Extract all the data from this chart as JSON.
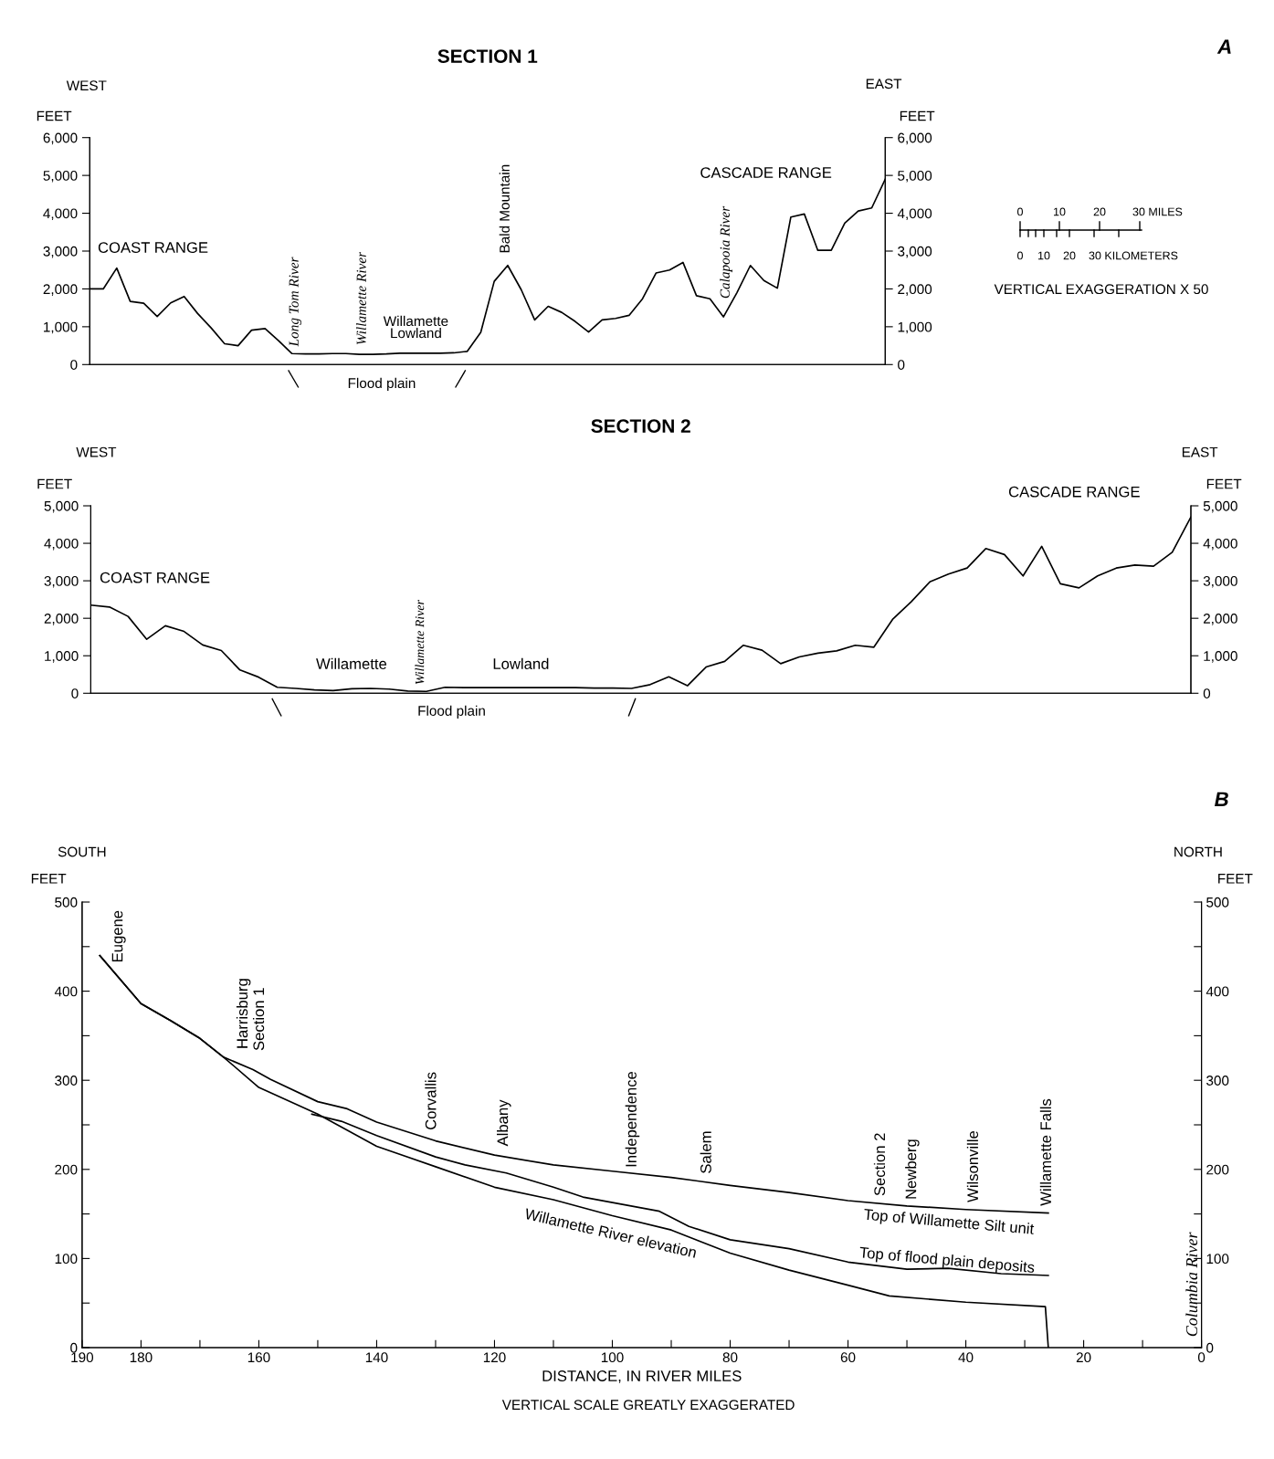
{
  "chart_data": [
    {
      "type": "line",
      "title": "SECTION 1",
      "ylabel": "FEET",
      "y2label": "FEET",
      "color": "#000000",
      "tick_labels": "y",
      "categories": [
        null,
        null,
        null,
        null,
        null,
        null,
        null,
        null,
        null,
        null,
        null,
        null,
        null,
        null,
        null,
        null,
        null,
        null,
        null,
        null,
        null,
        null,
        null,
        null,
        null,
        null,
        null,
        null,
        null,
        null,
        null,
        null,
        null,
        null,
        null,
        null,
        null,
        null,
        null,
        null,
        null,
        null,
        null,
        null,
        null,
        null,
        null,
        null,
        null,
        null,
        null,
        null,
        null,
        null,
        null,
        null,
        null,
        null,
        null,
        null
      ],
      "values": [
        2000,
        2000,
        2550,
        1670,
        1620,
        1270,
        1630,
        1800,
        1350,
        970,
        550,
        500,
        910,
        950,
        630,
        290,
        280,
        280,
        290,
        290,
        270,
        270,
        280,
        300,
        300,
        300,
        300,
        310,
        350,
        850,
        2200,
        2620,
        1980,
        1180,
        1540,
        1380,
        1140,
        860,
        1180,
        1220,
        1300,
        1740,
        2420,
        2500,
        2700,
        1820,
        1740,
        1260,
        1900,
        2620,
        2220,
        2020,
        3900,
        3980,
        3020,
        3020,
        3740,
        4060,
        4140,
        4900
      ],
      "ylim": [
        0,
        6000
      ],
      "yticks": [
        0,
        {
          "value": 1000,
          "label": "1,000"
        },
        {
          "value": 2000,
          "label": "2,000"
        },
        {
          "value": 3000,
          "label": "3,000"
        },
        {
          "value": 4000,
          "label": "4,000"
        },
        {
          "value": 5000,
          "label": "5,000"
        },
        {
          "value": 6000,
          "label": "6,000"
        }
      ],
      "y2lim": [
        0,
        6000
      ],
      "y2ticks": [
        0,
        {
          "value": 1000,
          "label": "1,000"
        },
        {
          "value": 2000,
          "label": "2,000"
        },
        {
          "value": 3000,
          "label": "3,000"
        },
        {
          "value": 4000,
          "label": "4,000"
        },
        {
          "value": 5000,
          "label": "5,000"
        },
        {
          "value": 6000,
          "label": "6,000"
        }
      ],
      "annotations": [
        "A",
        "WEST",
        "EAST",
        "COAST RANGE",
        "Long Tom River",
        "Willamette River",
        "Willamette\nLowland",
        "Bald Mountain",
        "Calapooia River",
        "CASCADE RANGE",
        "Flood plain",
        "0",
        "10",
        "20",
        "30 MILES",
        "0",
        "10",
        "20",
        "30 KILOMETERS",
        "VERTICAL EXAGGERATION X 50"
      ]
    },
    {
      "type": "line",
      "title": "SECTION 2",
      "ylabel": "FEET",
      "y2label": "FEET",
      "color": "#000000",
      "tick_labels": "y",
      "categories": [
        null,
        null,
        null,
        null,
        null,
        null,
        null,
        null,
        null,
        null,
        null,
        null,
        null,
        null,
        null,
        null,
        null,
        null,
        null,
        null,
        null,
        null,
        null,
        null,
        null,
        null,
        null,
        null,
        null,
        null,
        null,
        null,
        null,
        null,
        null,
        null,
        null,
        null,
        null,
        null,
        null,
        null,
        null,
        null,
        null,
        null,
        null,
        null,
        null,
        null,
        null,
        null,
        null,
        null,
        null,
        null,
        null,
        null,
        null,
        null
      ],
      "values": [
        2350,
        2300,
        2050,
        1440,
        1800,
        1650,
        1290,
        1140,
        620,
        430,
        160,
        130,
        90,
        70,
        120,
        130,
        110,
        60,
        50,
        160,
        150,
        150,
        150,
        150,
        150,
        150,
        150,
        140,
        140,
        130,
        230,
        440,
        200,
        700,
        850,
        1280,
        1150,
        790,
        970,
        1070,
        1130,
        1280,
        1230,
        1970,
        2440,
        2970,
        3180,
        3340,
        3860,
        3700,
        3130,
        3920,
        2920,
        2810,
        3130,
        3340,
        3420,
        3390,
        3760,
        4700
      ],
      "ylim": [
        0,
        5000
      ],
      "yticks": [
        0,
        {
          "value": 1000,
          "label": "1,000"
        },
        {
          "value": 2000,
          "label": "2,000"
        },
        {
          "value": 3000,
          "label": "3,000"
        },
        {
          "value": 4000,
          "label": "4,000"
        },
        {
          "value": 5000,
          "label": "5,000"
        }
      ],
      "y2lim": [
        0,
        5000
      ],
      "y2ticks": [
        0,
        {
          "value": 1000,
          "label": "1,000"
        },
        {
          "value": 2000,
          "label": "2,000"
        },
        {
          "value": 3000,
          "label": "3,000"
        },
        {
          "value": 4000,
          "label": "4,000"
        },
        {
          "value": 5000,
          "label": "5,000"
        }
      ],
      "annotations": [
        "WEST",
        "EAST",
        "COAST RANGE",
        "Willamette",
        "Willamette River",
        "Lowland",
        "CASCADE RANGE",
        "Flood plain"
      ]
    },
    {
      "type": "line",
      "xlabel": "DISTANCE, IN RIVER MILES",
      "ylabel": "FEET",
      "y2label": "FEET",
      "series": [
        {
          "name": "Top of Willamette Silt unit",
          "color": "#000000",
          "x": [
            187,
            180,
            175,
            170,
            166,
            161,
            158,
            150,
            145,
            140,
            130,
            120,
            110,
            100,
            90,
            80,
            70,
            60,
            50,
            40,
            26
          ],
          "values": [
            440,
            386,
            367,
            347,
            326,
            312,
            301,
            276,
            268,
            253,
            232,
            216,
            205,
            198,
            191,
            182,
            174,
            165,
            159,
            155,
            151
          ]
        },
        {
          "name": "Top of flood plain deposits",
          "color": "#000000",
          "x": [
            151,
            146,
            140,
            130,
            125,
            118,
            110,
            105,
            92,
            87,
            80,
            70,
            60,
            50,
            43,
            34,
            26
          ],
          "values": [
            262,
            254,
            238,
            214,
            205,
            196,
            180,
            169,
            153,
            136,
            121,
            111,
            96,
            88,
            89,
            83,
            81
          ]
        },
        {
          "name": "Willamette River elevation",
          "color": "#000000",
          "x": [
            187,
            180,
            175,
            170,
            166,
            160,
            150,
            140,
            130,
            120,
            110,
            100,
            90,
            80,
            70,
            60,
            53,
            40,
            26.5,
            26
          ],
          "values": [
            440,
            386,
            367,
            347,
            326,
            292,
            262,
            226,
            203,
            180,
            166,
            148,
            132,
            106,
            87,
            70,
            58,
            51,
            46,
            0
          ]
        }
      ],
      "xlim": [
        190,
        0
      ],
      "xticks": [
        190,
        180,
        {
          "value": 170,
          "label": null
        },
        160,
        {
          "value": 150,
          "label": null
        },
        140,
        {
          "value": 130,
          "label": null
        },
        120,
        {
          "value": 110,
          "label": null
        },
        100,
        {
          "value": 90,
          "label": null
        },
        80,
        {
          "value": 70,
          "label": null
        },
        60,
        {
          "value": 50,
          "label": null
        },
        40,
        {
          "value": 30,
          "label": null
        },
        20,
        {
          "value": 10,
          "label": null
        },
        0
      ],
      "ylim": [
        0,
        500
      ],
      "yticks": [
        0,
        {
          "value": 50,
          "label": null
        },
        100,
        {
          "value": 150,
          "label": null
        },
        200,
        {
          "value": 250,
          "label": null
        },
        300,
        {
          "value": 350,
          "label": null
        },
        400,
        {
          "value": 450,
          "label": null
        },
        500
      ],
      "y2lim": [
        0,
        500
      ],
      "y2ticks": [
        0,
        {
          "value": 50,
          "label": null
        },
        100,
        {
          "value": 150,
          "label": null
        },
        200,
        {
          "value": 250,
          "label": null
        },
        300,
        {
          "value": 350,
          "label": null
        },
        400,
        {
          "value": 450,
          "label": null
        },
        500
      ],
      "annotations": [
        "B",
        "SOUTH",
        "NORTH",
        "VERTICAL SCALE GREATLY EXAGGERATED",
        "Eugene",
        "Harrisburg",
        "Section 1",
        "Corvallis",
        "Albany",
        "Independence",
        "Salem",
        "Section 2",
        "Newberg",
        "Wilsonville",
        "Willamette Falls",
        "Columbia River"
      ]
    }
  ]
}
